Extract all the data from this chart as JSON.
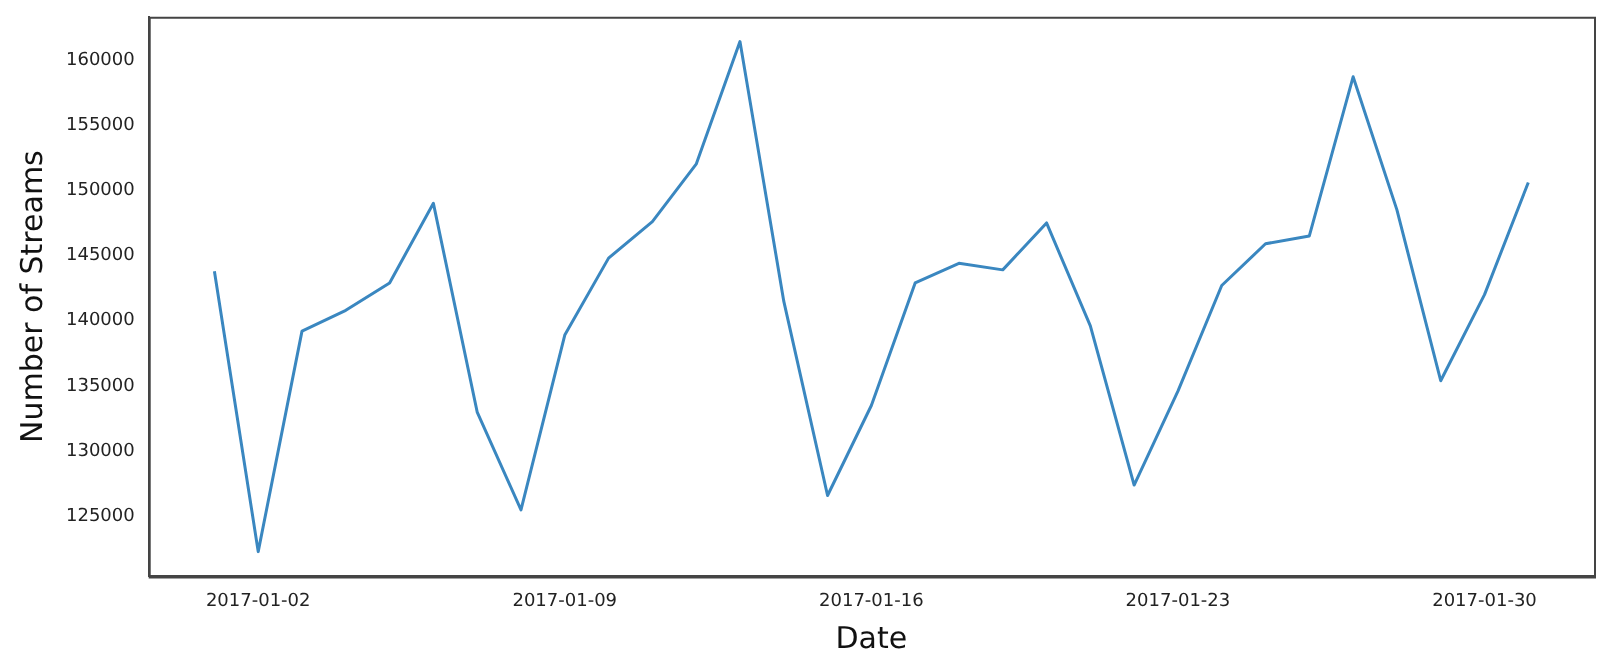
{
  "chart_data": {
    "type": "line",
    "xlabel": "Date",
    "ylabel": "Number of Streams",
    "x": [
      "2017-01-01",
      "2017-01-02",
      "2017-01-03",
      "2017-01-04",
      "2017-01-05",
      "2017-01-06",
      "2017-01-07",
      "2017-01-08",
      "2017-01-09",
      "2017-01-10",
      "2017-01-11",
      "2017-01-12",
      "2017-01-13",
      "2017-01-14",
      "2017-01-15",
      "2017-01-16",
      "2017-01-17",
      "2017-01-18",
      "2017-01-19",
      "2017-01-20",
      "2017-01-21",
      "2017-01-22",
      "2017-01-23",
      "2017-01-24",
      "2017-01-25",
      "2017-01-26",
      "2017-01-27",
      "2017-01-28",
      "2017-01-29",
      "2017-01-30",
      "2017-01-31"
    ],
    "series": [
      {
        "color": "#3a87c0",
        "values": [
          143800,
          122300,
          139200,
          140800,
          142900,
          149000,
          133000,
          125500,
          138900,
          144800,
          147600,
          152000,
          161400,
          141500,
          126600,
          133500,
          142900,
          144400,
          143900,
          147500,
          139600,
          127400,
          134600,
          142700,
          145900,
          146500,
          158700,
          148500,
          135400,
          142000,
          150600
        ]
      }
    ],
    "xlim": [
      "2016-12-30T12:00",
      "2017-02-01T12:00"
    ],
    "ylim": [
      120400,
      163300
    ],
    "xticks": [
      "2017-01-02",
      "2017-01-09",
      "2017-01-16",
      "2017-01-23",
      "2017-01-30"
    ],
    "yticks": [
      125000,
      130000,
      135000,
      140000,
      145000,
      150000,
      155000,
      160000
    ],
    "grid": false,
    "legend": false
  }
}
